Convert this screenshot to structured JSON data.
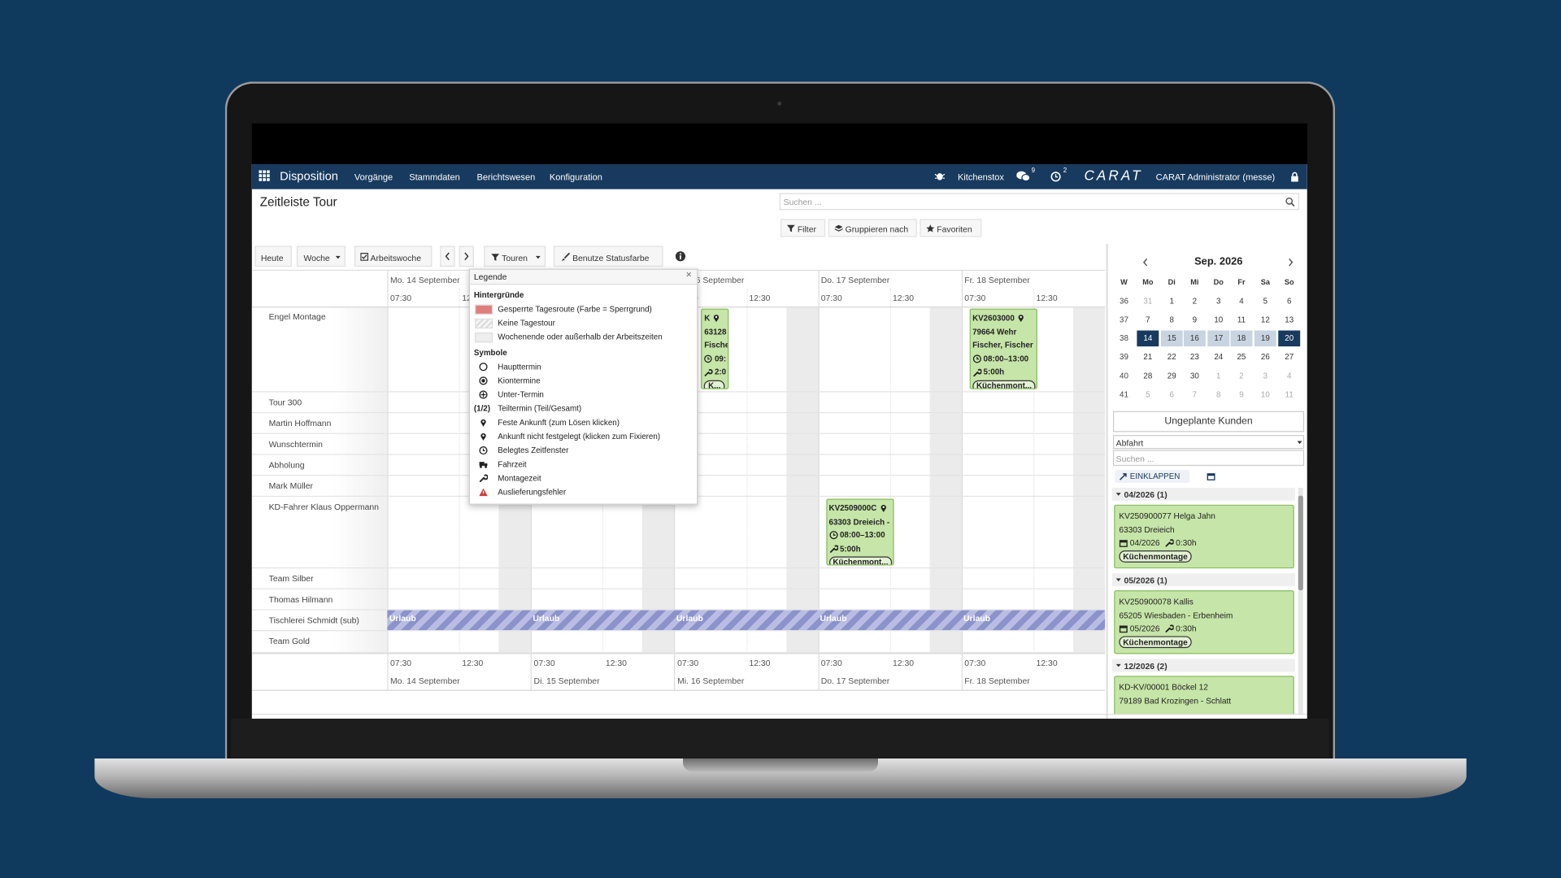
{
  "nav": {
    "brand": "Disposition",
    "menu": [
      "Vorgänge",
      "Stammdaten",
      "Berichtswesen",
      "Konfiguration"
    ],
    "company": "Kitchenstox",
    "messages_count": "9",
    "activities_count": "2",
    "logo": "CARAT",
    "user": "CARAT Administrator (messe)"
  },
  "header": {
    "title": "Zeitleiste Tour",
    "search_placeholder": "Suchen ...",
    "filters": [
      "Filter",
      "Gruppieren nach",
      "Favoriten"
    ]
  },
  "toolbar": {
    "today": "Heute",
    "range": "Woche",
    "workweek": "Arbeitswoche",
    "tours": "Touren",
    "status_color": "Benutze Statusfarbe"
  },
  "timeline": {
    "days": [
      "Mo. 14 September",
      "Di. 15 September",
      "Mi. 16 September",
      "Do. 17 September",
      "Fr. 18 September"
    ],
    "times": [
      "07:30",
      "12:30"
    ],
    "rows": [
      {
        "name": "Engel Montage",
        "cells": [
          null,
          null,
          {
            "title": "K",
            "lines": [
              "63128",
              "Fische"
            ],
            "time": "09:",
            "duration": "2:0",
            "tag": "K..."
          },
          null,
          {
            "title": "KV2603000",
            "lines": [
              "79664 Wehr",
              "Fischer, Fischer"
            ],
            "time": "08:00–13:00",
            "duration": "5:00h",
            "tag": "Küchenmont..."
          }
        ]
      },
      {
        "name": "Tour 300"
      },
      {
        "name": "Martin Hoffmann"
      },
      {
        "name": "Wunschtermin"
      },
      {
        "name": "Abholung"
      },
      {
        "name": "Mark Müller"
      },
      {
        "name": "KD-Fahrer Klaus Oppermann",
        "cells": [
          null,
          null,
          null,
          {
            "title": "KV2509000C",
            "lines": [
              "63303 Dreieich -"
            ],
            "time": "08:00–13:00",
            "duration": "5:00h",
            "tag": "Küchenmont..."
          },
          null
        ]
      },
      {
        "name": "Team Silber"
      },
      {
        "name": "Thomas Hilmann"
      },
      {
        "name": "Tischlerei Schmidt (sub)",
        "absences": [
          "Urlaub",
          "Urlaub",
          "Urlaub",
          "Urlaub",
          "Urlaub"
        ]
      },
      {
        "name": "Team Gold"
      }
    ]
  },
  "legend": {
    "title": "Legende",
    "close": "×",
    "backgrounds_title": "Hintergründe",
    "backgrounds": [
      "Gesperrte Tagesroute (Farbe = Sperrgrund)",
      "Keine Tagestour",
      "Wochenende oder außerhalb der Arbeitszeiten"
    ],
    "symbols_title": "Symbole",
    "symbols": [
      {
        "label": "Haupttermin"
      },
      {
        "label": "Kiontermine"
      },
      {
        "label": "Unter-Termin"
      },
      {
        "marker": "(1/2)",
        "label": "Teiltermin (Teil/Gesamt)"
      },
      {
        "label": "Feste Ankunft (zum Lösen klicken)"
      },
      {
        "label": "Ankunft nicht festgelegt (klicken zum Fixieren)"
      },
      {
        "label": "Belegtes Zeitfenster"
      },
      {
        "label": "Fahrzeit"
      },
      {
        "label": "Montagezeit"
      },
      {
        "label": "Auslieferungsfehler"
      }
    ]
  },
  "calendar": {
    "month": "Sep. 2026",
    "weekday_header": [
      "W",
      "Mo",
      "Di",
      "Mi",
      "Do",
      "Fr",
      "Sa",
      "So"
    ],
    "current_week": 38,
    "weeks": [
      {
        "week": 36,
        "days": [
          31,
          1,
          2,
          3,
          4,
          5,
          6
        ]
      },
      {
        "week": 37,
        "days": [
          7,
          8,
          9,
          10,
          11,
          12,
          13
        ]
      },
      {
        "week": 38,
        "days": [
          14,
          15,
          16,
          17,
          18,
          19,
          20
        ]
      },
      {
        "week": 39,
        "days": [
          21,
          22,
          23,
          24,
          25,
          26,
          27
        ]
      },
      {
        "week": 40,
        "days": [
          28,
          29,
          30,
          1,
          2,
          3,
          4
        ]
      },
      {
        "week": 41,
        "days": [
          5,
          6,
          7,
          8,
          9,
          10,
          11
        ]
      }
    ]
  },
  "unplanned": {
    "title": "Ungeplante Kunden",
    "sort": "Abfahrt",
    "search_placeholder": "Suchen ...",
    "collapse": "EINKLAPPEN",
    "groups": [
      {
        "label": "04/2026 (1)",
        "cards": [
          {
            "lines": [
              "KV250900077 Helga Jahn",
              "63303 Dreieich"
            ],
            "date": "04/2026",
            "duration": "0:30h",
            "tag": "Küchenmontage"
          }
        ]
      },
      {
        "label": "05/2026 (1)",
        "cards": [
          {
            "lines": [
              "KV250900078 Kallis",
              "65205 Wiesbaden - Erbenheim"
            ],
            "date": "05/2026",
            "duration": "0:30h",
            "tag": "Küchenmontage"
          }
        ]
      },
      {
        "label": "12/2026 (2)",
        "cards": [
          {
            "lines": [
              "KD-KV/00001 Böckel 12",
              "79189 Bad Krozingen - Schlatt"
            ]
          }
        ]
      }
    ]
  }
}
